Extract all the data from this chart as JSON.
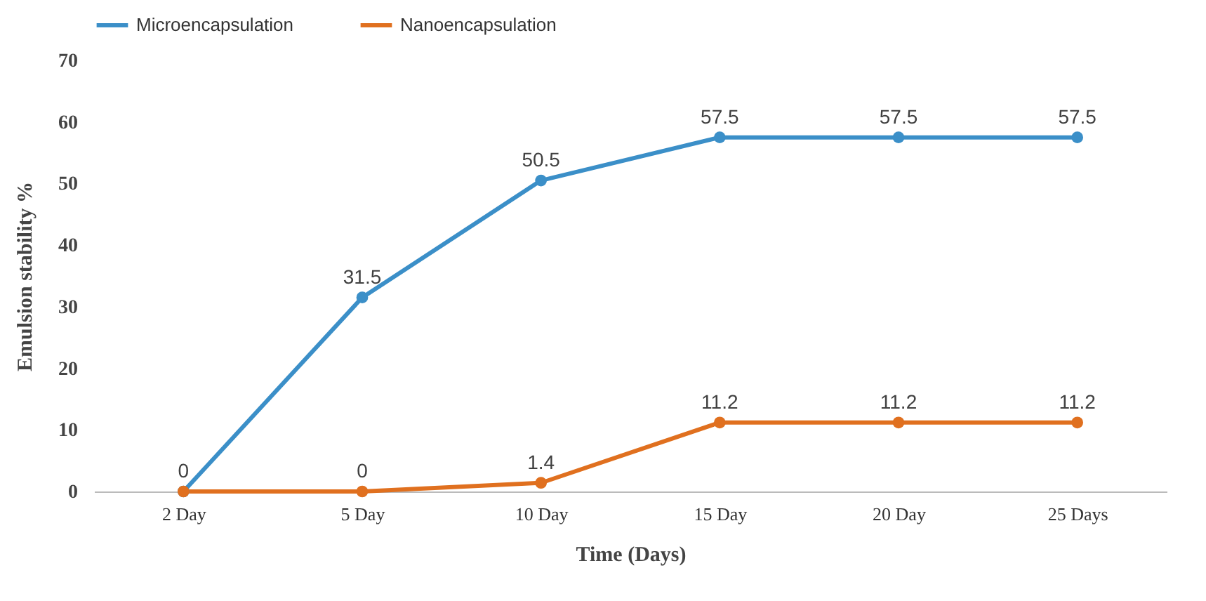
{
  "chart_data": {
    "type": "line",
    "xlabel": "Time (Days)",
    "ylabel": "Emulsion stability %",
    "categories": [
      "2 Day",
      "5 Day",
      "10 Day",
      "15 Day",
      "20 Day",
      "25 Days"
    ],
    "series": [
      {
        "name": "Microencapsulation",
        "color": "#3b8fc8",
        "values": [
          0,
          31.5,
          50.5,
          57.5,
          57.5,
          57.5
        ],
        "value_labels": [
          "0",
          "31.5",
          "50.5",
          "57.5",
          "57.5",
          "57.5"
        ]
      },
      {
        "name": "Nanoencapsulation",
        "color": "#e0701f",
        "values": [
          0,
          0,
          1.4,
          11.2,
          11.2,
          11.2
        ],
        "value_labels": [
          null,
          "0",
          "1.4",
          "11.2",
          "11.2",
          "11.2"
        ]
      }
    ],
    "ylim": [
      0,
      70
    ],
    "yticks": [
      0,
      10,
      20,
      30,
      40,
      50,
      60,
      70
    ],
    "legend": "top",
    "marker": "circle"
  }
}
